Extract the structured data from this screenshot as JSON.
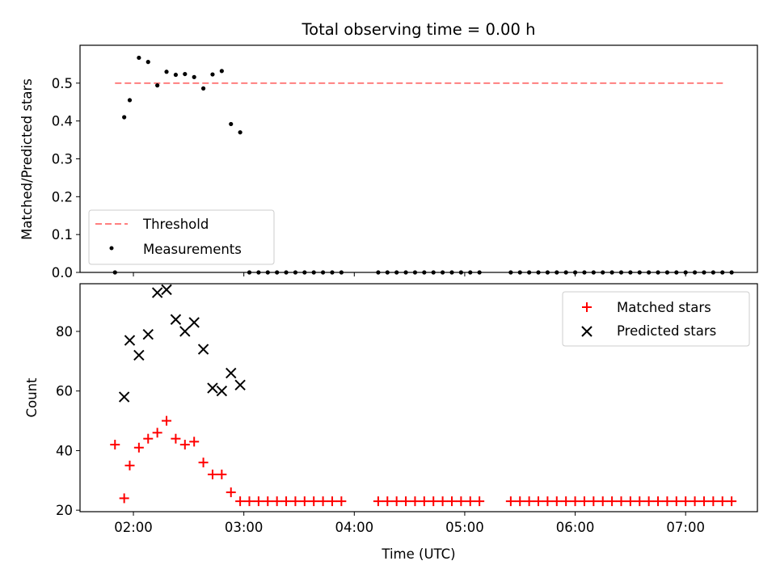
{
  "figure": {
    "title": "Total observing time = 0.00 h",
    "xlabel": "Time (UTC)"
  },
  "chart_data": [
    {
      "type": "scatter",
      "ylabel": "Matched/Predicted stars",
      "ylim": [
        0,
        0.6
      ],
      "xlim": [
        "01:31",
        "07:39"
      ],
      "yticks": [
        0.0,
        0.1,
        0.2,
        0.3,
        0.4,
        0.5
      ],
      "ytick_labels": [
        "0.0",
        "0.1",
        "0.2",
        "0.3",
        "0.4",
        "0.5"
      ],
      "xticks": [
        "02:00",
        "03:00",
        "04:00",
        "05:00",
        "06:00",
        "07:00"
      ],
      "grid": false,
      "legend_position": "lower-left",
      "threshold": {
        "name": "Threshold",
        "value": 0.5,
        "x_range": [
          "01:50",
          "07:22"
        ],
        "color": "#ff7f7f"
      },
      "series": [
        {
          "name": "Measurements",
          "color": "#000000",
          "points": [
            [
              "01:50",
              0.0
            ],
            [
              "01:55",
              0.41
            ],
            [
              "01:58",
              0.455
            ],
            [
              "02:03",
              0.567
            ],
            [
              "02:08",
              0.556
            ],
            [
              "02:13",
              0.494
            ],
            [
              "02:18",
              0.53
            ],
            [
              "02:23",
              0.522
            ],
            [
              "02:28",
              0.524
            ],
            [
              "02:33",
              0.516
            ],
            [
              "02:38",
              0.486
            ],
            [
              "02:43",
              0.523
            ],
            [
              "02:48",
              0.532
            ],
            [
              "02:53",
              0.392
            ],
            [
              "02:58",
              0.37
            ],
            [
              "03:03",
              0.0
            ],
            [
              "03:08",
              0.0
            ],
            [
              "03:13",
              0.0
            ],
            [
              "03:18",
              0.0
            ],
            [
              "03:23",
              0.0
            ],
            [
              "03:28",
              0.0
            ],
            [
              "03:33",
              0.0
            ],
            [
              "03:38",
              0.0
            ],
            [
              "03:43",
              0.0
            ],
            [
              "03:48",
              0.0
            ],
            [
              "03:53",
              0.0
            ],
            [
              "04:13",
              0.0
            ],
            [
              "04:18",
              0.0
            ],
            [
              "04:23",
              0.0
            ],
            [
              "04:28",
              0.0
            ],
            [
              "04:33",
              0.0
            ],
            [
              "04:38",
              0.0
            ],
            [
              "04:43",
              0.0
            ],
            [
              "04:48",
              0.0
            ],
            [
              "04:53",
              0.0
            ],
            [
              "04:58",
              0.0
            ],
            [
              "05:03",
              0.0
            ],
            [
              "05:08",
              0.0
            ],
            [
              "05:25",
              0.0
            ],
            [
              "05:30",
              0.0
            ],
            [
              "05:35",
              0.0
            ],
            [
              "05:40",
              0.0
            ],
            [
              "05:45",
              0.0
            ],
            [
              "05:50",
              0.0
            ],
            [
              "05:55",
              0.0
            ],
            [
              "06:00",
              0.0
            ],
            [
              "06:05",
              0.0
            ],
            [
              "06:10",
              0.0
            ],
            [
              "06:15",
              0.0
            ],
            [
              "06:20",
              0.0
            ],
            [
              "06:25",
              0.0
            ],
            [
              "06:30",
              0.0
            ],
            [
              "06:35",
              0.0
            ],
            [
              "06:40",
              0.0
            ],
            [
              "06:45",
              0.0
            ],
            [
              "06:50",
              0.0
            ],
            [
              "06:55",
              0.0
            ],
            [
              "07:00",
              0.0
            ],
            [
              "07:05",
              0.0
            ],
            [
              "07:10",
              0.0
            ],
            [
              "07:15",
              0.0
            ],
            [
              "07:20",
              0.0
            ],
            [
              "07:25",
              0.0
            ]
          ]
        }
      ]
    },
    {
      "type": "scatter",
      "ylabel": "Count",
      "ylim": [
        19.5,
        96
      ],
      "xlim": [
        "01:31",
        "07:39"
      ],
      "yticks": [
        20,
        40,
        60,
        80
      ],
      "ytick_labels": [
        "20",
        "40",
        "60",
        "80"
      ],
      "xticks": [
        "02:00",
        "03:00",
        "04:00",
        "05:00",
        "06:00",
        "07:00"
      ],
      "xtick_labels": [
        "02:00",
        "03:00",
        "04:00",
        "05:00",
        "06:00",
        "07:00"
      ],
      "grid": false,
      "legend_position": "upper-right",
      "series": [
        {
          "name": "Matched stars",
          "marker": "plus",
          "color": "#ff0000",
          "points": [
            [
              "01:50",
              42
            ],
            [
              "01:55",
              24
            ],
            [
              "01:58",
              35
            ],
            [
              "02:03",
              41
            ],
            [
              "02:08",
              44
            ],
            [
              "02:13",
              46
            ],
            [
              "02:18",
              50
            ],
            [
              "02:23",
              44
            ],
            [
              "02:28",
              42
            ],
            [
              "02:33",
              43
            ],
            [
              "02:38",
              36
            ],
            [
              "02:43",
              32
            ],
            [
              "02:48",
              32
            ],
            [
              "02:53",
              26
            ],
            [
              "02:58",
              23
            ],
            [
              "03:03",
              23
            ],
            [
              "03:08",
              23
            ],
            [
              "03:13",
              23
            ],
            [
              "03:18",
              23
            ],
            [
              "03:23",
              23
            ],
            [
              "03:28",
              23
            ],
            [
              "03:33",
              23
            ],
            [
              "03:38",
              23
            ],
            [
              "03:43",
              23
            ],
            [
              "03:48",
              23
            ],
            [
              "03:53",
              23
            ],
            [
              "04:13",
              23
            ],
            [
              "04:18",
              23
            ],
            [
              "04:23",
              23
            ],
            [
              "04:28",
              23
            ],
            [
              "04:33",
              23
            ],
            [
              "04:38",
              23
            ],
            [
              "04:43",
              23
            ],
            [
              "04:48",
              23
            ],
            [
              "04:53",
              23
            ],
            [
              "04:58",
              23
            ],
            [
              "05:03",
              23
            ],
            [
              "05:08",
              23
            ],
            [
              "05:25",
              23
            ],
            [
              "05:30",
              23
            ],
            [
              "05:35",
              23
            ],
            [
              "05:40",
              23
            ],
            [
              "05:45",
              23
            ],
            [
              "05:50",
              23
            ],
            [
              "05:55",
              23
            ],
            [
              "06:00",
              23
            ],
            [
              "06:05",
              23
            ],
            [
              "06:10",
              23
            ],
            [
              "06:15",
              23
            ],
            [
              "06:20",
              23
            ],
            [
              "06:25",
              23
            ],
            [
              "06:30",
              23
            ],
            [
              "06:35",
              23
            ],
            [
              "06:40",
              23
            ],
            [
              "06:45",
              23
            ],
            [
              "06:50",
              23
            ],
            [
              "06:55",
              23
            ],
            [
              "07:00",
              23
            ],
            [
              "07:05",
              23
            ],
            [
              "07:10",
              23
            ],
            [
              "07:15",
              23
            ],
            [
              "07:20",
              23
            ],
            [
              "07:25",
              23
            ]
          ]
        },
        {
          "name": "Predicted stars",
          "marker": "x",
          "color": "#000000",
          "points": [
            [
              "01:55",
              58
            ],
            [
              "01:58",
              77
            ],
            [
              "02:03",
              72
            ],
            [
              "02:08",
              79
            ],
            [
              "02:13",
              93
            ],
            [
              "02:18",
              94
            ],
            [
              "02:23",
              84
            ],
            [
              "02:28",
              80
            ],
            [
              "02:33",
              83
            ],
            [
              "02:38",
              74
            ],
            [
              "02:43",
              61
            ],
            [
              "02:48",
              60
            ],
            [
              "02:53",
              66
            ],
            [
              "02:58",
              62
            ]
          ]
        }
      ]
    }
  ]
}
